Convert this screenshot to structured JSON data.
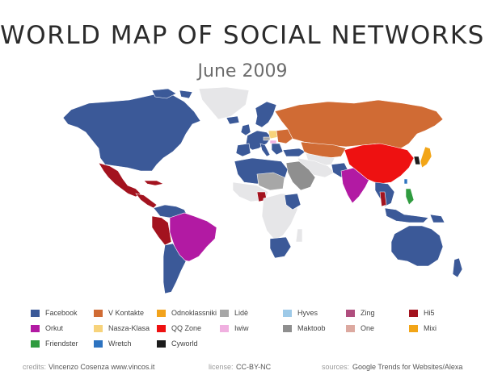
{
  "title": "WORLD MAP OF SOCIAL NETWORKS",
  "subtitle": "June 2009",
  "colors": {
    "ocean": "#ffffff",
    "nodata": "#e6e6e8",
    "facebook": "#3b5998",
    "vkontakte": "#d06b34",
    "odnoklassniki": "#f2a31c",
    "lide": "#a7a7a7",
    "hyves": "#9ecae8",
    "zing": "#b04e7e",
    "hi5": "#a3131f",
    "orkut": "#b21aa3",
    "naszaklasa": "#f7d37b",
    "qqzone": "#ee1111",
    "iwiw": "#f0b0e0",
    "maktoob": "#8f8f8f",
    "one": "#dca9a0",
    "mixi": "#f2a517",
    "friendster": "#2f9b3f",
    "wretch": "#2d73c0",
    "cyworld": "#1c1c1c"
  },
  "legend": [
    {
      "label": "Facebook",
      "color": "#3b5998"
    },
    {
      "label": "V Kontakte",
      "color": "#d06b34"
    },
    {
      "label": "Odnoklassniki",
      "color": "#f2a31c"
    },
    {
      "label": "Lidè",
      "color": "#a7a7a7"
    },
    {
      "label": "Hyves",
      "color": "#9ecae8"
    },
    {
      "label": "Zing",
      "color": "#b04e7e"
    },
    {
      "label": "Hi5",
      "color": "#a3131f"
    },
    {
      "label": "Orkut",
      "color": "#b21aa3"
    },
    {
      "label": "Nasza-Klasa",
      "color": "#f7d37b"
    },
    {
      "label": "QQ Zone",
      "color": "#ee1111"
    },
    {
      "label": "Iwiw",
      "color": "#f0b0e0"
    },
    {
      "label": "Maktoob",
      "color": "#8f8f8f"
    },
    {
      "label": "One",
      "color": "#dca9a0"
    },
    {
      "label": "Mixi",
      "color": "#f2a517"
    },
    {
      "label": "Friendster",
      "color": "#2f9b3f"
    },
    {
      "label": "Wretch",
      "color": "#2d73c0"
    },
    {
      "label": "Cyworld",
      "color": "#1c1c1c"
    }
  ],
  "credits": {
    "credits_label": "credits:",
    "credits_value": "Vincenzo Cosenza  www.vincos.it",
    "license_label": "license:",
    "license_value": "CC-BY-NC",
    "sources_label": "sources:",
    "sources_value": "Google Trends for Websites/Alexa"
  }
}
